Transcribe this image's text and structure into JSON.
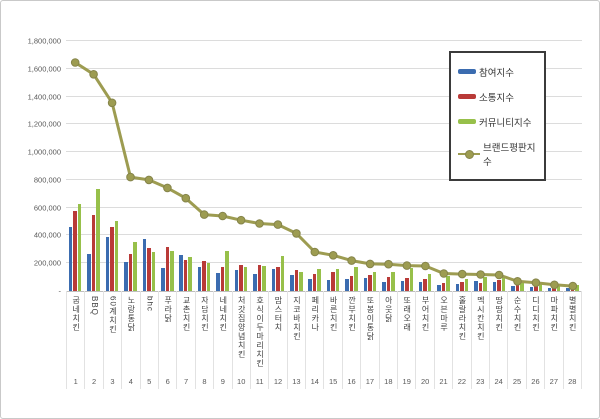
{
  "colors": {
    "participation": "#3b6cb0",
    "communication": "#b93a38",
    "community": "#97c04a",
    "reputation_line": "#9d9c51",
    "reputation_marker_edge": "#85844a",
    "gridline": "#dcdcdc",
    "axis_text": "#595959"
  },
  "chart_data": {
    "type": "bar",
    "subtype": "grouped bars with overlay line",
    "title": "",
    "xlabel": "",
    "ylabel": "",
    "ylim": [
      0,
      1800000
    ],
    "y_tick_step": 200000,
    "grid": true,
    "legend_position": "upper-right overlay box",
    "y_tick_labels": [
      "1,800,000",
      "1,600,000",
      "1,400,000",
      "1,200,000",
      "1,000,000",
      "800,000",
      "600,000",
      "400,000",
      "200,000",
      "-"
    ],
    "categories": [
      "굽네치킨",
      "BBQ",
      "60계치킨",
      "노랑통닭",
      "bhc",
      "푸라닭",
      "교촌치킨",
      "자담치킨",
      "네네치킨",
      "처갓집양념치킨",
      "호식이두마리치킨",
      "맘스터치",
      "지코바치킨",
      "페리카나",
      "바른치킨",
      "깐부치킨",
      "또봉이통닭",
      "아웃닭",
      "또래오래",
      "부어치킨",
      "오븐마루",
      "훌랄라치킨",
      "멕시칸치킨",
      "땅땅치킨",
      "순수치킨",
      "디디치킨",
      "마파치킨",
      "별별치킨"
    ],
    "category_numbers": [
      "1",
      "2",
      "3",
      "4",
      "5",
      "6",
      "7",
      "8",
      "9",
      "10",
      "11",
      "12",
      "13",
      "14",
      "15",
      "16",
      "17",
      "18",
      "19",
      "20",
      "21",
      "22",
      "23",
      "24",
      "25",
      "26",
      "27",
      "28"
    ],
    "series": [
      {
        "name": "참여지수",
        "type": "bar",
        "color": "#3b6cb0",
        "values": [
          460000,
          265000,
          388000,
          208000,
          374000,
          167000,
          258000,
          176000,
          131000,
          150000,
          126000,
          155000,
          112000,
          90000,
          80000,
          90000,
          97000,
          62000,
          73000,
          65000,
          42000,
          52000,
          70000,
          67000,
          36000,
          30000,
          25000,
          20000
        ]
      },
      {
        "name": "소통지수",
        "type": "bar",
        "color": "#b93a38",
        "values": [
          576000,
          546000,
          462000,
          268000,
          310000,
          320000,
          226000,
          215000,
          174000,
          188000,
          190000,
          174000,
          152000,
          126000,
          138000,
          110000,
          114000,
          102000,
          97000,
          85000,
          61000,
          67000,
          60000,
          76000,
          48000,
          43000,
          36000,
          30000
        ]
      },
      {
        "name": "커뮤니티지수",
        "type": "bar",
        "color": "#97c04a",
        "values": [
          630000,
          738000,
          506000,
          356000,
          281000,
          290000,
          245000,
          202000,
          286000,
          176000,
          179000,
          250000,
          140000,
          160000,
          162000,
          170000,
          138000,
          138000,
          165000,
          126000,
          109000,
          88000,
          102000,
          107000,
          67000,
          60000,
          52000,
          45000
        ]
      },
      {
        "name": "브랜드평판지수",
        "type": "line",
        "color": "#9d9c51",
        "values": [
          1645000,
          1560000,
          1355000,
          820000,
          800000,
          742000,
          668000,
          550000,
          540000,
          510000,
          486000,
          478000,
          415000,
          281000,
          257000,
          219000,
          195000,
          193000,
          183000,
          180000,
          126000,
          122000,
          119000,
          115000,
          70000,
          60000,
          45000,
          35000
        ]
      }
    ]
  }
}
